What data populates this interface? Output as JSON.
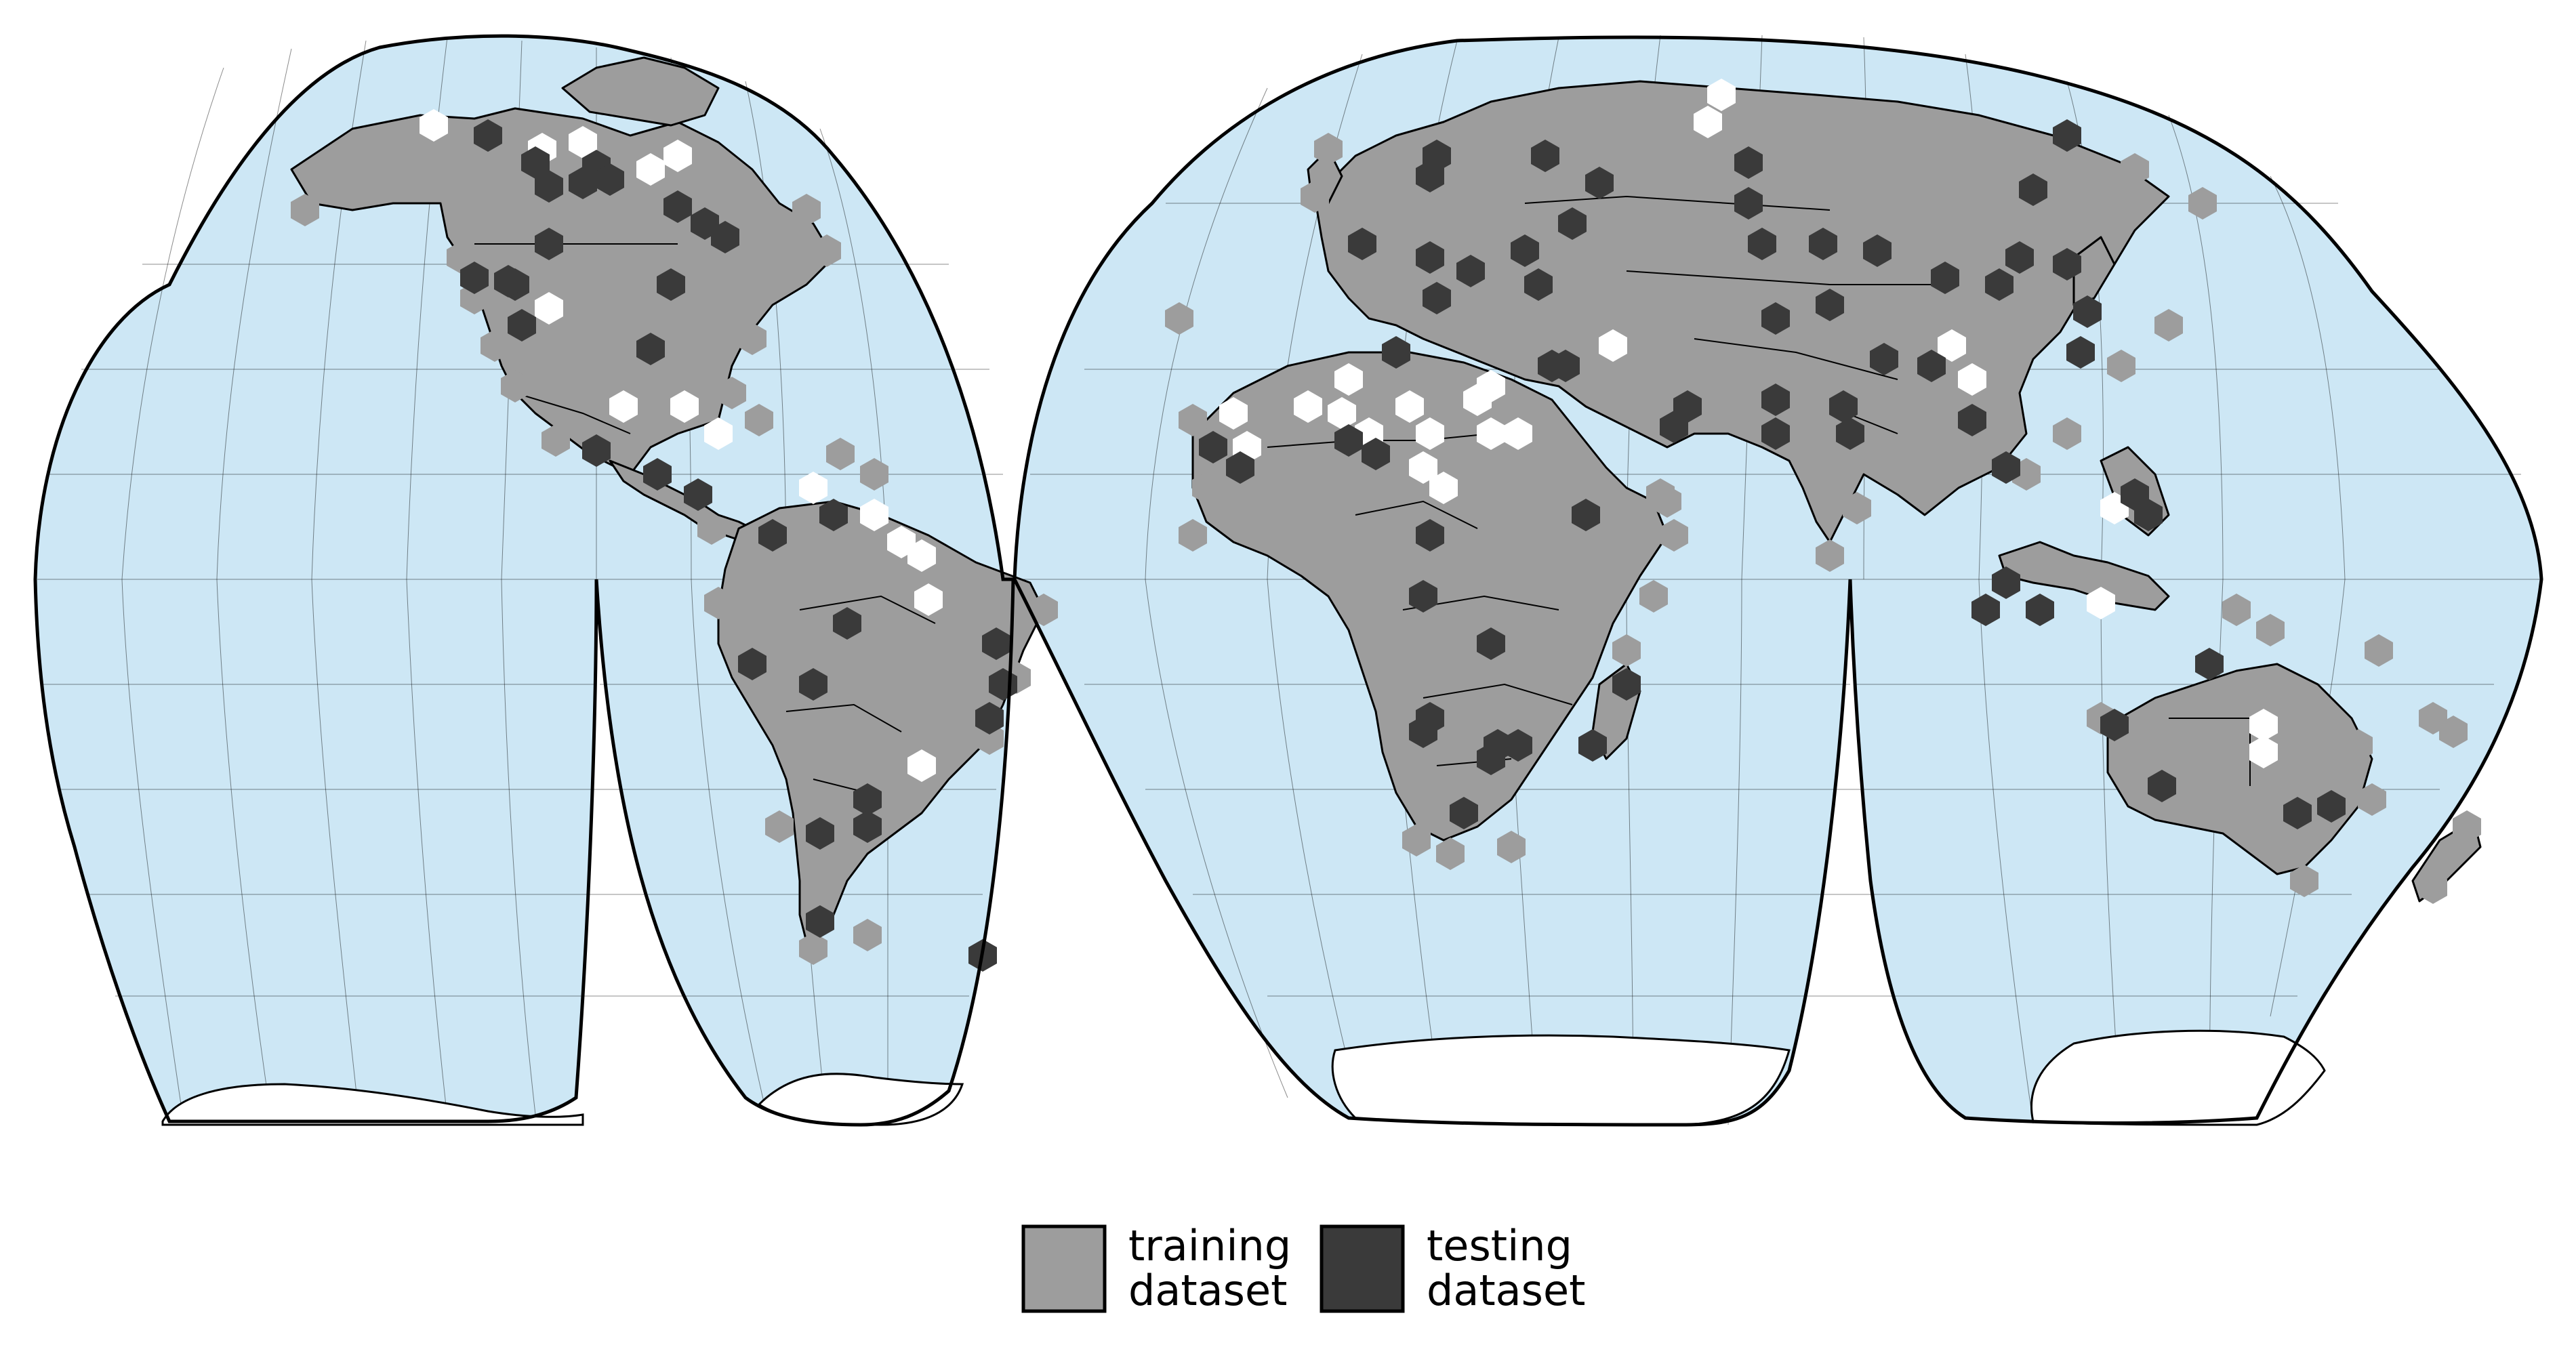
{
  "map": {
    "projection": "Goode homolosine (interrupted)",
    "ocean_color": "#cde7f5",
    "land_color": "#9d9d9d",
    "outline_color": "#000000"
  },
  "legend": {
    "items": [
      {
        "label": "training\ndataset",
        "color": "#9d9d9d"
      },
      {
        "label": "testing\ndataset",
        "color": "#3a3a3a"
      }
    ]
  }
}
